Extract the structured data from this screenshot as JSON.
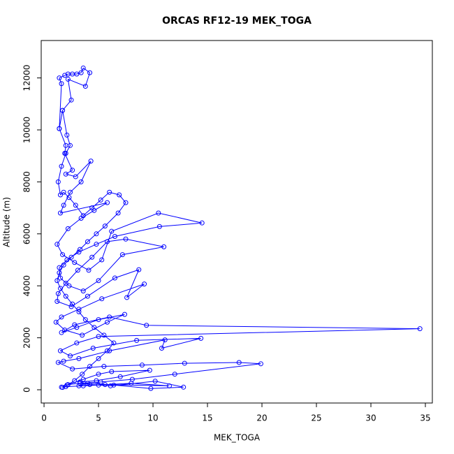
{
  "chart_data": {
    "type": "line",
    "title": "ORCAS RF12-19 MEK_TOGA",
    "x_label": "MEK_TOGA",
    "y_label": "Altitude (m)",
    "color": "#0000ff",
    "x": [
      1.6,
      2.1,
      2.8,
      3.5,
      4.2,
      5.0,
      5.8,
      6.4,
      5.5,
      4.6,
      3.8,
      3.2,
      2.6,
      2.0,
      1.5,
      1.2,
      1.4,
      1.8,
      2.5,
      3.3,
      4.0,
      4.8,
      5.6,
      6.8,
      7.5,
      6.9,
      6.0,
      5.2,
      4.4,
      3.6,
      2.9,
      2.3,
      1.8,
      1.5,
      1.3,
      1.6,
      2.0,
      2.4,
      2.1,
      1.7,
      1.4,
      1.6,
      1.4,
      1.9,
      2.2,
      2.6,
      3.0,
      3.4,
      3.6,
      4.2,
      3.8,
      2.2,
      2.5,
      1.7,
      1.4,
      2.0,
      1.9,
      2.6,
      2.0,
      2.9,
      4.3,
      3.4,
      2.4,
      1.8,
      1.5,
      5.8,
      4.6,
      3.4,
      2.2,
      1.2,
      1.7,
      2.8,
      4.1,
      5.3,
      6.2,
      10.5,
      14.5,
      10.6,
      6.5,
      4.8,
      3.2,
      2.1,
      1.4,
      1.5,
      2.3,
      3.6,
      5.0,
      7.2,
      11.0,
      7.5,
      5.8,
      4.4,
      3.1,
      2.0,
      1.3,
      1.2,
      2.5,
      4.0,
      6.5,
      8.7,
      7.6,
      9.2,
      5.3,
      3.2,
      1.6,
      1.1,
      1.9,
      3.5,
      5.8,
      7.4,
      5.0,
      3.0,
      1.6,
      2.8,
      6.0,
      9.4,
      34.5,
      5.0,
      3.0,
      1.5,
      2.4,
      4.5,
      8.5,
      14.4,
      10.8,
      11.1,
      6.0,
      3.2,
      1.8,
      1.3,
      2.6,
      5.5,
      9.0,
      12.9,
      17.9,
      19.9,
      12.0,
      8.1,
      5.2,
      3.3,
      2.2,
      3.6,
      5.0,
      6.2,
      9.7,
      7.0,
      4.8,
      3.3,
      4.2,
      6.1,
      10.2,
      12.8,
      9.8,
      6.4,
      4.0,
      3.2,
      5.6,
      11.5,
      8.0,
      5.0,
      3.6,
      2.0,
      1.7
    ],
    "values": [
      100,
      180,
      350,
      600,
      900,
      1200,
      1500,
      1800,
      2100,
      2400,
      2700,
      3000,
      3300,
      3600,
      3900,
      4200,
      4500,
      4800,
      5100,
      5400,
      5700,
      6000,
      6300,
      6800,
      7200,
      7500,
      7600,
      7300,
      7000,
      6700,
      7100,
      7400,
      7600,
      7500,
      8000,
      8600,
      9100,
      9400,
      9800,
      10750,
      10050,
      11780,
      12000,
      12100,
      12150,
      12150,
      12150,
      12200,
      12380,
      12200,
      11680,
      11950,
      11150,
      10750,
      10050,
      9400,
      9100,
      8450,
      8300,
      8200,
      8800,
      8000,
      7600,
      7100,
      6800,
      7200,
      6900,
      6600,
      6200,
      5600,
      5200,
      4900,
      4600,
      5000,
      6100,
      6800,
      6420,
      6280,
      5900,
      5600,
      5300,
      5000,
      4700,
      4300,
      4000,
      3800,
      4200,
      5200,
      5500,
      5800,
      5700,
      5100,
      4600,
      4100,
      3700,
      3400,
      3200,
      3600,
      4300,
      4620,
      3550,
      4070,
      3500,
      3100,
      2800,
      2600,
      2300,
      2100,
      2600,
      2900,
      2700,
      2400,
      2200,
      2500,
      2800,
      2480,
      2350,
      2050,
      1800,
      1500,
      1300,
      1600,
      1900,
      1980,
      1600,
      1920,
      1500,
      1200,
      1100,
      1050,
      800,
      900,
      950,
      1020,
      1050,
      1000,
      600,
      400,
      300,
      250,
      200,
      400,
      600,
      700,
      750,
      500,
      350,
      300,
      200,
      150,
      330,
      100,
      50,
      180,
      250,
      150,
      200,
      150,
      250,
      180,
      150,
      120,
      90
    ],
    "xlim": [
      -0.26,
      35.64
    ],
    "ylim": [
      -510,
      13440
    ],
    "xticks": [
      0,
      5,
      10,
      15,
      20,
      25,
      30,
      35
    ],
    "yticks": [
      0,
      2000,
      4000,
      6000,
      8000,
      10000,
      12000
    ]
  }
}
